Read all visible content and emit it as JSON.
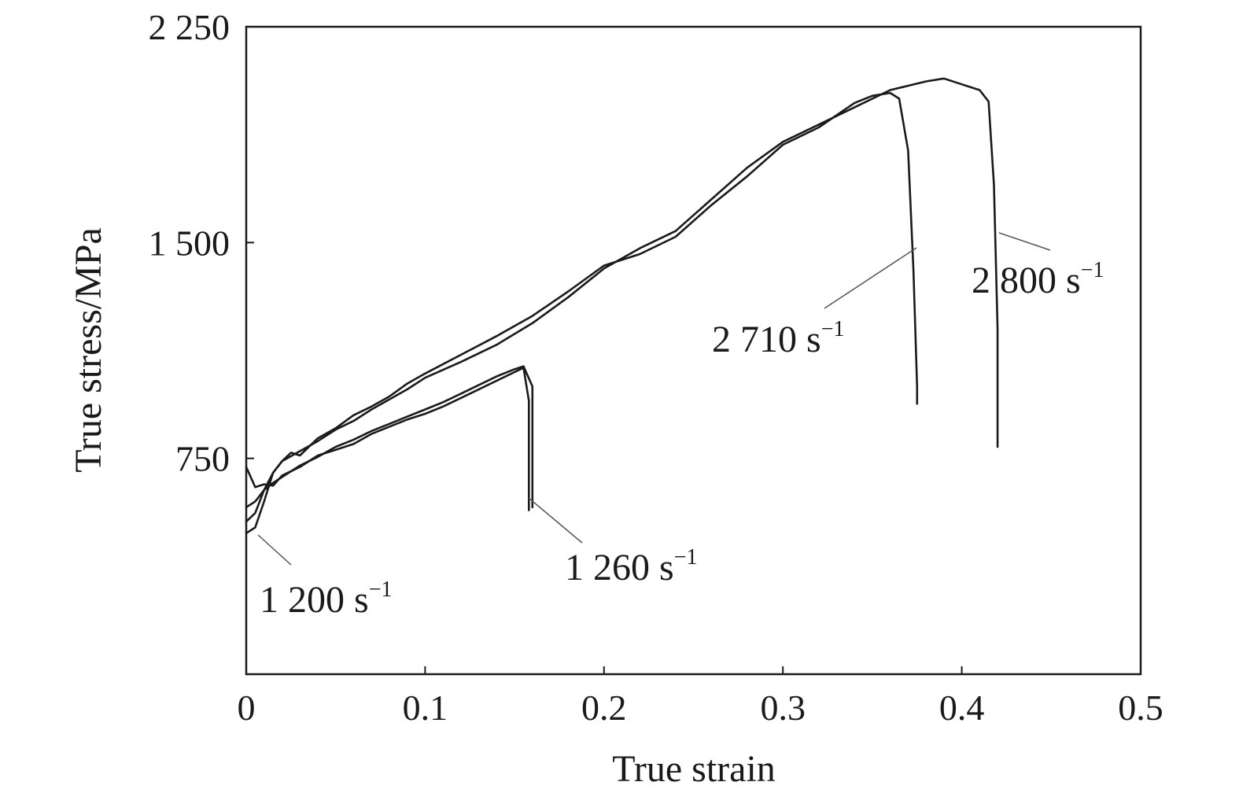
{
  "chart_data": {
    "type": "line",
    "title": "",
    "xlabel": "True strain",
    "ylabel": "True stress/MPa",
    "xlim": [
      0,
      0.5
    ],
    "ylim": [
      0,
      2250
    ],
    "x_ticks": [
      {
        "value": 0,
        "label": "0"
      },
      {
        "value": 0.1,
        "label": "0.1"
      },
      {
        "value": 0.2,
        "label": "0.2"
      },
      {
        "value": 0.3,
        "label": "0.3"
      },
      {
        "value": 0.4,
        "label": "0.4"
      },
      {
        "value": 0.5,
        "label": "0.5"
      }
    ],
    "y_ticks": [
      {
        "value": 750,
        "label": "750"
      },
      {
        "value": 1500,
        "label": "1 500"
      },
      {
        "value": 2250,
        "label": "2 250"
      }
    ],
    "grid": false,
    "legend": "none",
    "line_color": "#1a1a1a",
    "series": [
      {
        "name": "1 200 s⁻¹",
        "x": [
          0.0,
          0.005,
          0.01,
          0.015,
          0.02,
          0.03,
          0.04,
          0.05,
          0.06,
          0.07,
          0.08,
          0.09,
          0.1,
          0.11,
          0.12,
          0.13,
          0.14,
          0.15,
          0.155,
          0.16,
          0.16
        ],
        "y": [
          530,
          560,
          640,
          665,
          685,
          725,
          755,
          790,
          815,
          845,
          870,
          895,
          920,
          945,
          975,
          1005,
          1035,
          1060,
          1070,
          1000,
          580
        ]
      },
      {
        "name": "1 260 s⁻¹",
        "x": [
          0.0,
          0.005,
          0.01,
          0.015,
          0.02,
          0.03,
          0.04,
          0.05,
          0.06,
          0.07,
          0.08,
          0.09,
          0.1,
          0.11,
          0.12,
          0.13,
          0.14,
          0.15,
          0.155,
          0.158,
          0.158
        ],
        "y": [
          720,
          650,
          660,
          655,
          690,
          720,
          760,
          780,
          800,
          835,
          860,
          885,
          905,
          930,
          960,
          990,
          1020,
          1050,
          1065,
          950,
          570
        ]
      },
      {
        "name": "2 710 s⁻¹",
        "x": [
          0.0,
          0.005,
          0.01,
          0.015,
          0.02,
          0.025,
          0.03,
          0.04,
          0.05,
          0.06,
          0.07,
          0.08,
          0.09,
          0.1,
          0.12,
          0.14,
          0.16,
          0.18,
          0.2,
          0.22,
          0.24,
          0.26,
          0.28,
          0.3,
          0.32,
          0.34,
          0.35,
          0.36,
          0.365,
          0.37,
          0.373,
          0.375,
          0.375
        ],
        "y": [
          490,
          510,
          600,
          700,
          740,
          770,
          760,
          820,
          855,
          900,
          930,
          965,
          1010,
          1045,
          1110,
          1175,
          1245,
          1330,
          1420,
          1460,
          1520,
          1630,
          1730,
          1840,
          1900,
          1985,
          2010,
          2020,
          2000,
          1820,
          1400,
          1000,
          940
        ]
      },
      {
        "name": "2 800 s⁻¹",
        "x": [
          0.0,
          0.005,
          0.01,
          0.015,
          0.02,
          0.03,
          0.04,
          0.05,
          0.06,
          0.07,
          0.08,
          0.09,
          0.1,
          0.12,
          0.14,
          0.16,
          0.18,
          0.2,
          0.22,
          0.24,
          0.26,
          0.28,
          0.3,
          0.32,
          0.34,
          0.36,
          0.37,
          0.38,
          0.39,
          0.4,
          0.41,
          0.415,
          0.418,
          0.42,
          0.42
        ],
        "y": [
          580,
          600,
          640,
          700,
          740,
          775,
          810,
          850,
          880,
          920,
          955,
          990,
          1030,
          1085,
          1145,
          1220,
          1310,
          1410,
          1480,
          1540,
          1650,
          1760,
          1850,
          1910,
          1970,
          2030,
          2045,
          2060,
          2070,
          2050,
          2030,
          1990,
          1700,
          1200,
          790
        ]
      }
    ],
    "annotations": [
      {
        "base": "1 200 s",
        "sup": "−1",
        "series": "1 200 s⁻¹"
      },
      {
        "base": "1 260 s",
        "sup": "−1",
        "series": "1 260 s⁻¹"
      },
      {
        "base": "2 710 s",
        "sup": "−1",
        "series": "2 710 s⁻¹"
      },
      {
        "base": "2 800 s",
        "sup": "−1",
        "series": "2 800 s⁻¹"
      }
    ]
  }
}
